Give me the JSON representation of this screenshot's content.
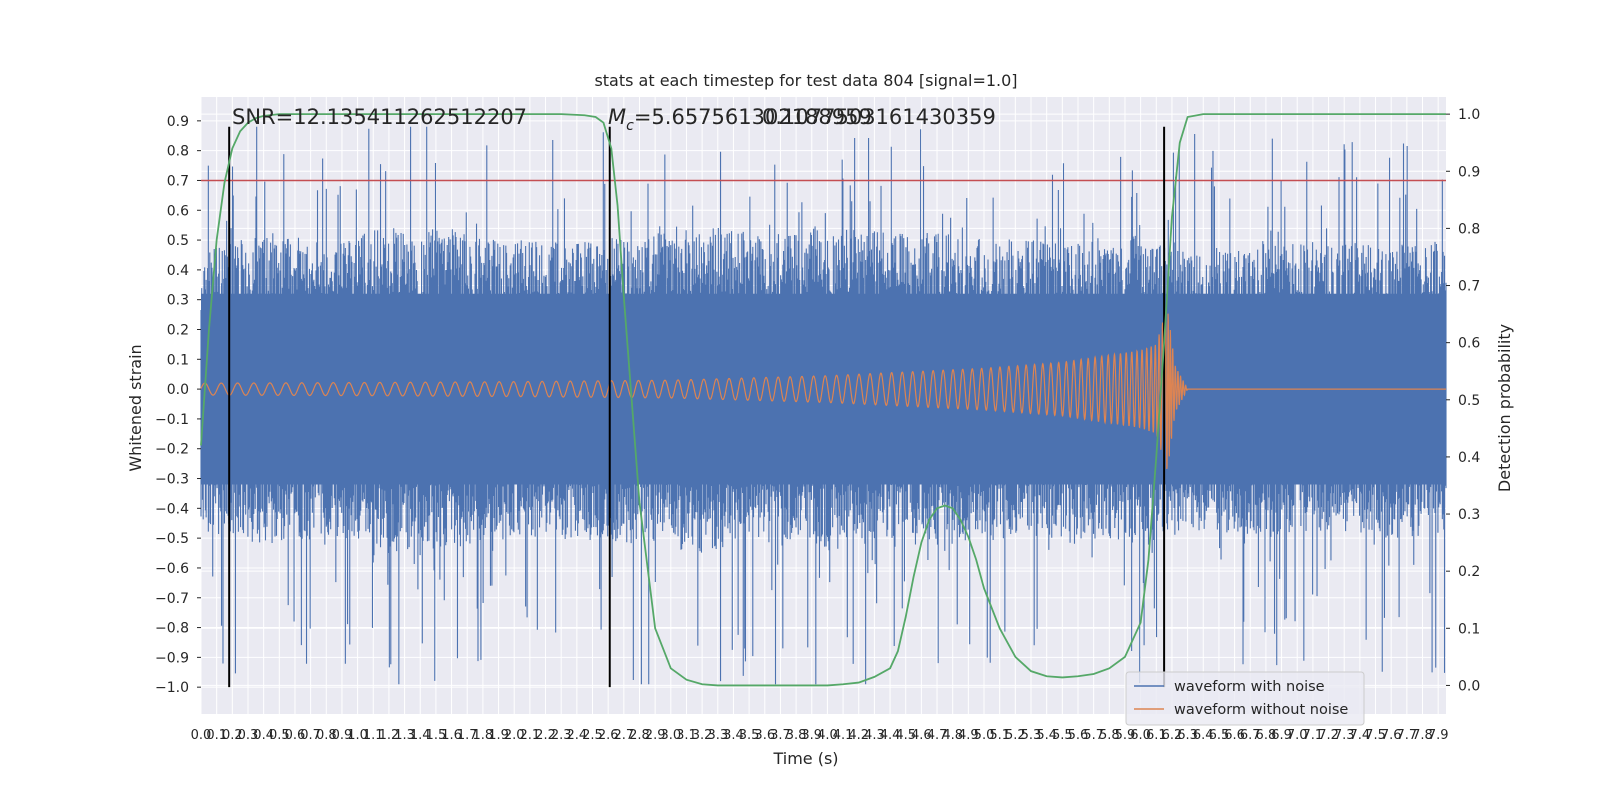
{
  "chart_data": {
    "type": "line",
    "title": "stats at each timestep for test data 804 [signal=1.0]",
    "xlabel": "Time (s)",
    "ylabel": "Whitened strain",
    "y2label": "Detection probability",
    "xlim": [
      0.0,
      7.95
    ],
    "ylim": [
      -1.09,
      0.98
    ],
    "y2lim": [
      -0.05,
      1.03
    ],
    "xticks": [
      0.0,
      0.1,
      0.2,
      0.3,
      0.4,
      0.5,
      0.6,
      0.7,
      0.8,
      0.9,
      1.0,
      1.1,
      1.2,
      1.3,
      1.4,
      1.5,
      1.6,
      1.7,
      1.8,
      1.9,
      2.0,
      2.1,
      2.2,
      2.3,
      2.4,
      2.5,
      2.6,
      2.7,
      2.8,
      2.9,
      3.0,
      3.1,
      3.2,
      3.3,
      3.4,
      3.5,
      3.6,
      3.7,
      3.8,
      3.9,
      4.0,
      4.1,
      4.2,
      4.3,
      4.4,
      4.5,
      4.6,
      4.7,
      4.8,
      4.9,
      5.0,
      5.1,
      5.2,
      5.3,
      5.4,
      5.5,
      5.6,
      5.7,
      5.8,
      5.9,
      6.0,
      6.1,
      6.2,
      6.3,
      6.4,
      6.5,
      6.6,
      6.7,
      6.8,
      6.9,
      7.0,
      7.1,
      7.2,
      7.3,
      7.4,
      7.5,
      7.6,
      7.7,
      7.8,
      7.9
    ],
    "yticks": [
      -1.0,
      -0.9,
      -0.8,
      -0.7,
      -0.6,
      -0.5,
      -0.4,
      -0.3,
      -0.2,
      -0.1,
      0.0,
      0.1,
      0.2,
      0.3,
      0.4,
      0.5,
      0.6,
      0.7,
      0.8,
      0.9
    ],
    "y2ticks": [
      0.0,
      0.1,
      0.2,
      0.3,
      0.4,
      0.5,
      0.6,
      0.7,
      0.8,
      0.9,
      1.0
    ],
    "threshold": {
      "axis": "y",
      "value": 0.7
    },
    "vertical_lines": [
      {
        "x": 0.18,
        "ymin": -1.0,
        "ymax": 0.88
      },
      {
        "x": 2.61,
        "ymin": -1.0,
        "ymax": 0.88
      },
      {
        "x": 6.15,
        "ymin": -1.0,
        "ymax": 0.88
      }
    ],
    "annotations": [
      {
        "text": "SNR=12.135411262512207",
        "x": 0.2,
        "y": 0.92
      },
      {
        "text": "=5.657561302188959",
        "math_prefix": "M",
        "math_sub": "c",
        "x": 2.6,
        "y": 0.92
      },
      {
        "text": "0.107750316143035​9",
        "x": 3.6,
        "y": 0.92
      }
    ],
    "series": [
      {
        "name": "waveform with noise",
        "color": "#4c72b0",
        "axis": "left",
        "envelope": [
          [
            0.0,
            0.48
          ],
          [
            0.4,
            0.52
          ],
          [
            0.8,
            0.5
          ],
          [
            1.2,
            0.55
          ],
          [
            1.6,
            0.53
          ],
          [
            2.0,
            0.5
          ],
          [
            2.4,
            0.5
          ],
          [
            2.8,
            0.52
          ],
          [
            3.2,
            0.55
          ],
          [
            3.6,
            0.52
          ],
          [
            4.0,
            0.55
          ],
          [
            4.4,
            0.53
          ],
          [
            4.8,
            0.52
          ],
          [
            5.2,
            0.5
          ],
          [
            5.6,
            0.5
          ],
          [
            6.0,
            0.52
          ],
          [
            6.4,
            0.48
          ],
          [
            6.8,
            0.5
          ],
          [
            7.2,
            0.48
          ],
          [
            7.6,
            0.5
          ],
          [
            7.95,
            0.5
          ]
        ],
        "spike_max": 0.88,
        "spike_min": -0.99
      },
      {
        "name": "waveform without noise",
        "color": "#dd8452",
        "axis": "left",
        "amplitude": [
          [
            0.0,
            0.02
          ],
          [
            1.0,
            0.022
          ],
          [
            2.0,
            0.025
          ],
          [
            3.0,
            0.03
          ],
          [
            4.0,
            0.045
          ],
          [
            5.0,
            0.07
          ],
          [
            5.5,
            0.09
          ],
          [
            6.0,
            0.13
          ],
          [
            6.1,
            0.15
          ],
          [
            6.17,
            0.28
          ],
          [
            6.22,
            0.08
          ],
          [
            6.3,
            0.0
          ],
          [
            7.95,
            0.0
          ]
        ]
      },
      {
        "name": "detection probability",
        "color": "#55a868",
        "axis": "right",
        "x": [
          0.0,
          0.05,
          0.1,
          0.15,
          0.2,
          0.25,
          0.3,
          0.35,
          0.4,
          0.5,
          0.6,
          0.8,
          1.0,
          1.5,
          2.0,
          2.3,
          2.45,
          2.52,
          2.57,
          2.62,
          2.66,
          2.7,
          2.75,
          2.8,
          2.9,
          3.0,
          3.1,
          3.2,
          3.3,
          3.5,
          3.8,
          4.0,
          4.1,
          4.2,
          4.3,
          4.4,
          4.45,
          4.5,
          4.55,
          4.6,
          4.65,
          4.7,
          4.75,
          4.8,
          4.85,
          4.9,
          4.95,
          5.0,
          5.1,
          5.2,
          5.3,
          5.4,
          5.5,
          5.6,
          5.7,
          5.8,
          5.9,
          6.0,
          6.05,
          6.1,
          6.15,
          6.2,
          6.25,
          6.3,
          6.4,
          6.6,
          7.0,
          7.5,
          7.95
        ],
        "values": [
          0.42,
          0.62,
          0.78,
          0.88,
          0.94,
          0.97,
          0.985,
          0.993,
          0.997,
          1.0,
          1.0,
          1.0,
          1.0,
          1.0,
          1.0,
          1.0,
          0.998,
          0.995,
          0.985,
          0.94,
          0.84,
          0.68,
          0.5,
          0.32,
          0.1,
          0.03,
          0.01,
          0.002,
          0.0,
          0.0,
          0.0,
          0.0,
          0.002,
          0.005,
          0.015,
          0.03,
          0.06,
          0.12,
          0.19,
          0.25,
          0.29,
          0.31,
          0.315,
          0.31,
          0.29,
          0.26,
          0.22,
          0.17,
          0.1,
          0.05,
          0.025,
          0.016,
          0.014,
          0.016,
          0.02,
          0.03,
          0.05,
          0.11,
          0.22,
          0.4,
          0.6,
          0.82,
          0.95,
          0.995,
          1.0,
          1.0,
          1.0,
          1.0,
          1.0
        ]
      }
    ],
    "legend": {
      "position": "lower-right",
      "entries": [
        "waveform with noise",
        "waveform without noise"
      ]
    },
    "colors": {
      "background": "#eaeaf2",
      "grid": "#ffffff",
      "threshold": "#c44e52",
      "vline": "#000000"
    },
    "grid": true
  }
}
